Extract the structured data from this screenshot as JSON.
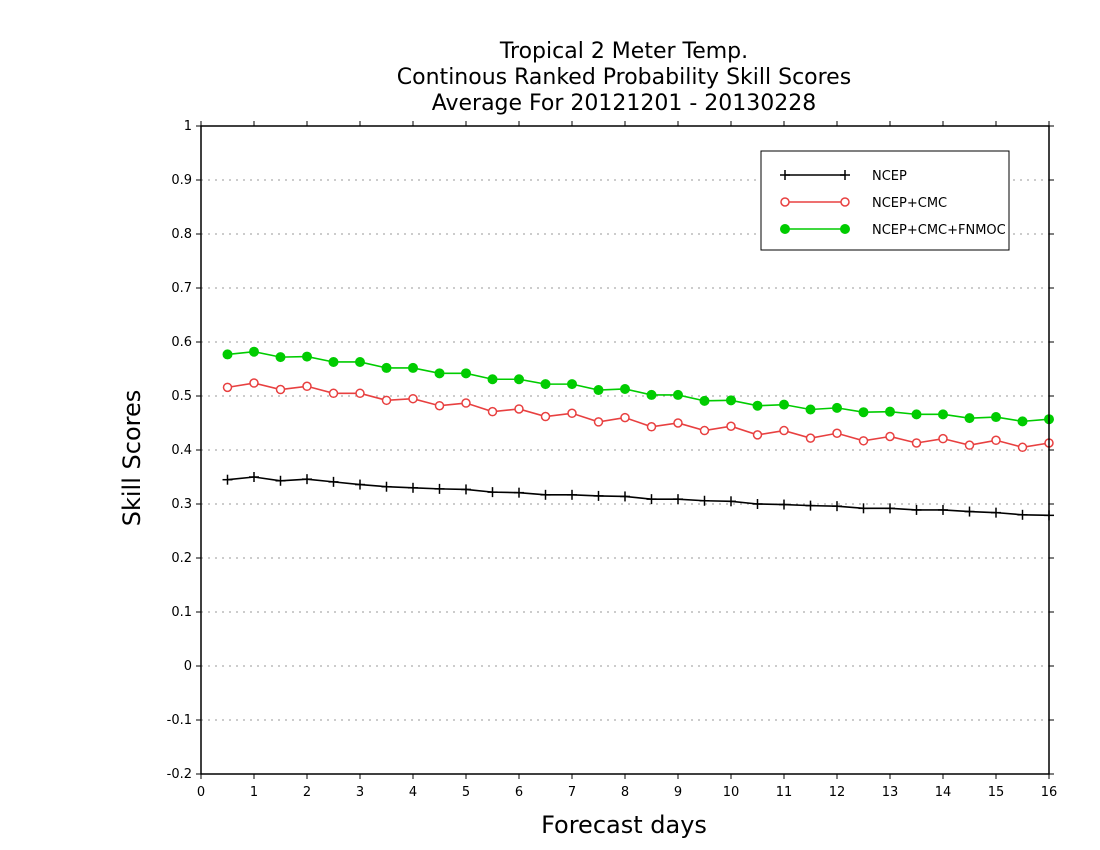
{
  "chart_data": {
    "type": "line",
    "title_lines": [
      "Tropical 2 Meter Temp.",
      "Continous Ranked Probability Skill Scores",
      "Average For 20121201 - 20130228"
    ],
    "xlabel": "Forecast days",
    "ylabel": "Skill Scores",
    "xlim": [
      0,
      16
    ],
    "ylim": [
      -0.2,
      1
    ],
    "xticks": [
      "0",
      "1",
      "2",
      "3",
      "4",
      "5",
      "6",
      "7",
      "8",
      "9",
      "10",
      "11",
      "12",
      "13",
      "14",
      "15",
      "16"
    ],
    "yticks": [
      "1",
      "0.9",
      "0.8",
      "0.7",
      "0.6",
      "0.5",
      "0.4",
      "0.3",
      "0.2",
      "0.1",
      "0",
      "-0.1",
      "-0.2"
    ],
    "ytick_values": [
      1,
      0.9,
      0.8,
      0.7,
      0.6,
      0.5,
      0.4,
      0.3,
      0.2,
      0.1,
      0,
      -0.1,
      -0.2
    ],
    "grid": "horizontal dotted",
    "legend_placement": "top-right",
    "x": [
      0.5,
      1,
      1.5,
      2,
      2.5,
      3,
      3.5,
      4,
      4.5,
      5,
      5.5,
      6,
      6.5,
      7,
      7.5,
      8,
      8.5,
      9,
      9.5,
      10,
      10.5,
      11,
      11.5,
      12,
      12.5,
      13,
      13.5,
      14,
      14.5,
      15,
      15.5,
      16
    ],
    "series": [
      {
        "name": "NCEP",
        "color": "#000000",
        "marker": "plus",
        "values": [
          0.345,
          0.35,
          0.343,
          0.346,
          0.341,
          0.336,
          0.332,
          0.33,
          0.328,
          0.327,
          0.322,
          0.321,
          0.317,
          0.317,
          0.315,
          0.314,
          0.309,
          0.309,
          0.306,
          0.305,
          0.3,
          0.299,
          0.297,
          0.296,
          0.292,
          0.292,
          0.289,
          0.289,
          0.286,
          0.284,
          0.28,
          0.279
        ]
      },
      {
        "name": "NCEP+CMC",
        "color": "#e84040",
        "marker": "open-circle",
        "values": [
          0.516,
          0.524,
          0.512,
          0.518,
          0.505,
          0.505,
          0.492,
          0.495,
          0.482,
          0.487,
          0.471,
          0.476,
          0.462,
          0.468,
          0.452,
          0.46,
          0.443,
          0.45,
          0.436,
          0.444,
          0.428,
          0.436,
          0.422,
          0.431,
          0.417,
          0.425,
          0.413,
          0.421,
          0.409,
          0.418,
          0.405,
          0.413
        ]
      },
      {
        "name": "NCEP+CMC+FNMOC",
        "color": "#00cc00",
        "marker": "filled-circle",
        "values": [
          0.577,
          0.582,
          0.572,
          0.573,
          0.563,
          0.563,
          0.552,
          0.552,
          0.542,
          0.542,
          0.531,
          0.531,
          0.522,
          0.522,
          0.511,
          0.513,
          0.502,
          0.502,
          0.491,
          0.492,
          0.482,
          0.484,
          0.475,
          0.478,
          0.47,
          0.471,
          0.466,
          0.466,
          0.459,
          0.461,
          0.453,
          0.457
        ]
      }
    ]
  }
}
